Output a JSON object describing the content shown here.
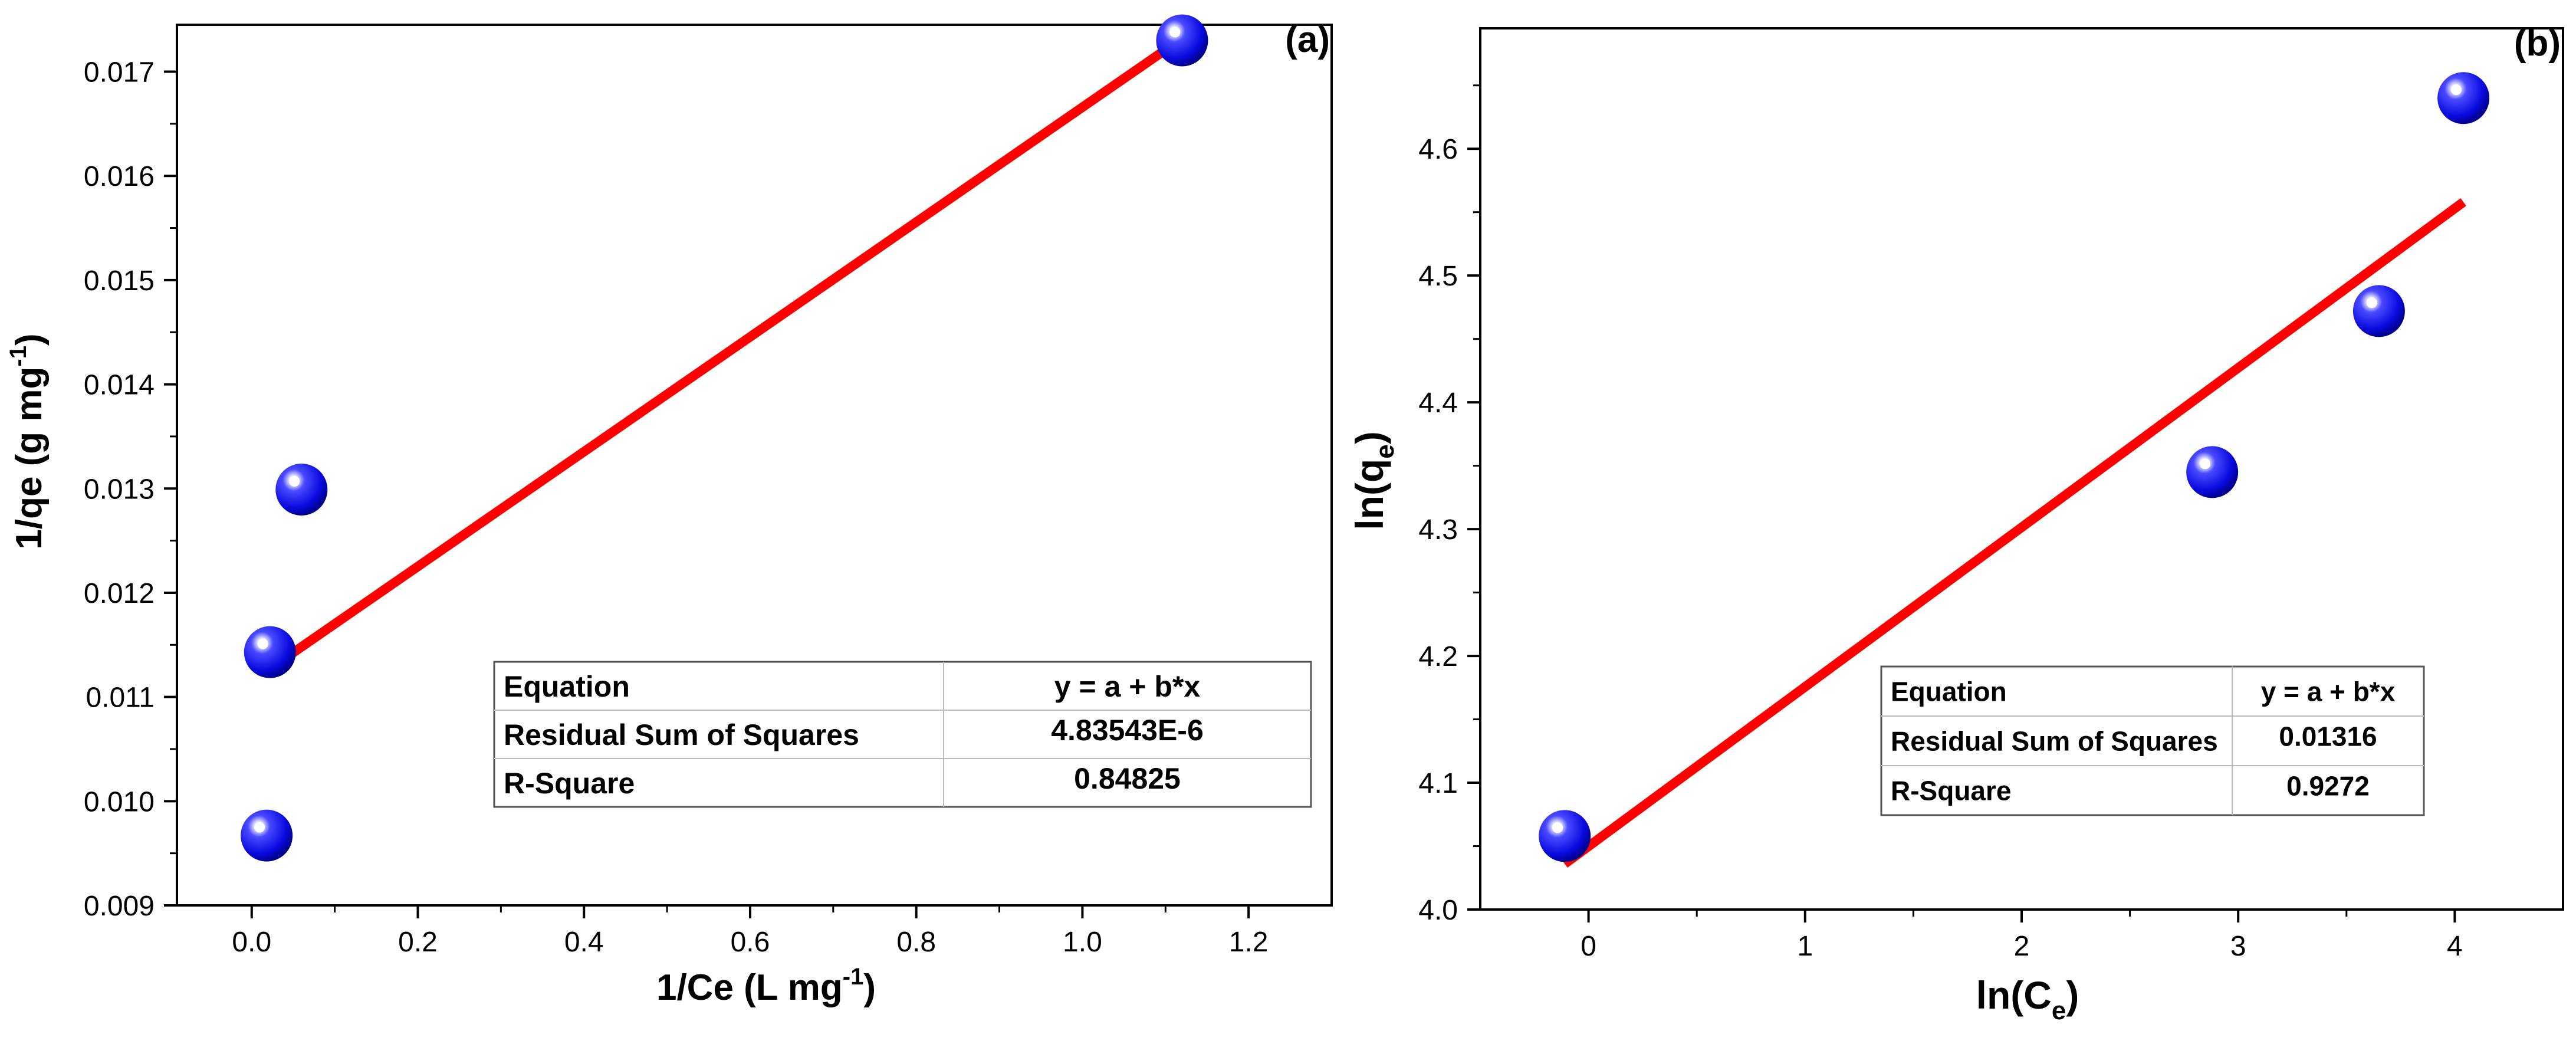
{
  "chart_data": [
    {
      "type": "scatter",
      "panel_label": "(a)",
      "xlabel": "1/Ce (L mg",
      "xlabel_sup": "-1",
      "xlabel_end": ")",
      "ylabel": "1/qe (g mg",
      "ylabel_sup": "-1",
      "ylabel_end": ")",
      "xlim": [
        -0.09,
        1.3
      ],
      "ylim": [
        0.009,
        0.01745
      ],
      "xticks": [
        0.0,
        0.2,
        0.4,
        0.6,
        0.8,
        1.0,
        1.2
      ],
      "xtick_labels": [
        "0.0",
        "0.2",
        "0.4",
        "0.6",
        "0.8",
        "1.0",
        "1.2"
      ],
      "yticks": [
        0.009,
        0.01,
        0.011,
        0.012,
        0.013,
        0.014,
        0.015,
        0.016,
        0.017
      ],
      "ytick_labels": [
        "0.009",
        "0.010",
        "0.011",
        "0.012",
        "0.013",
        "0.014",
        "0.015",
        "0.016",
        "0.017"
      ],
      "points": [
        {
          "x": 0.022,
          "y": 0.01143
        },
        {
          "x": 0.018,
          "y": 0.00967
        },
        {
          "x": 0.06,
          "y": 0.01299
        },
        {
          "x": 1.12,
          "y": 0.0173
        }
      ],
      "fit_line": {
        "x": [
          0.02,
          1.12
        ],
        "y": [
          0.01126,
          0.01732
        ]
      },
      "stats_table": {
        "rows": [
          {
            "label": "Equation",
            "value": "y = a + b*x"
          },
          {
            "label": "Residual Sum of Squares",
            "value": "4.83543E-6"
          },
          {
            "label": "R-Square",
            "value": "0.84825"
          }
        ]
      },
      "colors": {
        "point": "#1a1ae6",
        "line": "#ff0000"
      }
    },
    {
      "type": "scatter",
      "panel_label": "(b)",
      "xlabel": "ln(C",
      "xlabel_sub": "e",
      "xlabel_end": ")",
      "ylabel": "ln(q",
      "ylabel_sub": "e",
      "ylabel_end": ")",
      "xlim": [
        -0.5,
        4.5
      ],
      "ylim": [
        4.0,
        4.695
      ],
      "xticks": [
        0,
        1,
        2,
        3,
        4
      ],
      "xtick_labels": [
        "0",
        "1",
        "2",
        "3",
        "4"
      ],
      "yticks": [
        4.0,
        4.1,
        4.2,
        4.3,
        4.4,
        4.5,
        4.6
      ],
      "ytick_labels": [
        "4.0",
        "4.1",
        "4.2",
        "4.3",
        "4.4",
        "4.5",
        "4.6"
      ],
      "points": [
        {
          "x": -0.11,
          "y": 4.058
        },
        {
          "x": 2.88,
          "y": 4.345
        },
        {
          "x": 3.65,
          "y": 4.472
        },
        {
          "x": 4.04,
          "y": 4.64
        }
      ],
      "fit_line": {
        "x": [
          -0.11,
          4.04
        ],
        "y": [
          4.036,
          4.558
        ]
      },
      "stats_table": {
        "rows": [
          {
            "label": "Equation",
            "value": "y = a + b*x"
          },
          {
            "label": "Residual Sum of Squares",
            "value": "0.01316"
          },
          {
            "label": "R-Square",
            "value": "0.9272"
          }
        ]
      },
      "colors": {
        "point": "#1a1ae6",
        "line": "#ff0000"
      }
    }
  ]
}
